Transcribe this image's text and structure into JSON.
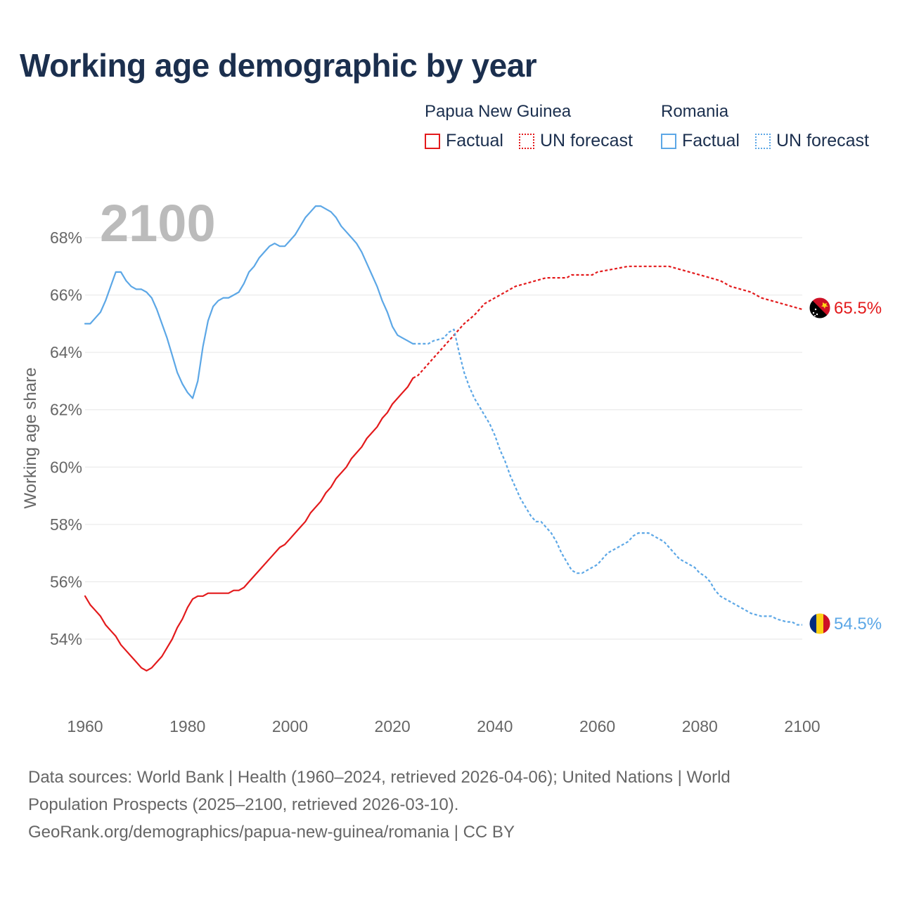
{
  "title": "Working age demographic by year",
  "legend": {
    "groups": [
      {
        "country": "Papua New Guinea",
        "factual": "Factual",
        "forecast": "UN forecast",
        "color": "#e31a1c"
      },
      {
        "country": "Romania",
        "factual": "Factual",
        "forecast": "UN forecast",
        "color": "#5ca7e6"
      }
    ]
  },
  "source": {
    "line1": "Data sources: World Bank | Health (1960–2024, retrieved 2026-04-06); United Nations | World",
    "line2": "Population Prospects (2025–2100, retrieved 2026-03-10).",
    "line3": "GeoRank.org/demographics/papua-new-guinea/romania | CC BY"
  },
  "icons": [
    "papua-new-guinea-flag-icon",
    "romania-flag-icon"
  ],
  "chart_data": {
    "type": "line",
    "title": "Working age demographic by year",
    "year_watermark": "2100",
    "xlabel": "",
    "ylabel": "Working age share",
    "xlim": [
      1960,
      2100
    ],
    "ylim": [
      52,
      69.5
    ],
    "x_ticks": [
      1960,
      1980,
      2000,
      2020,
      2040,
      2060,
      2080,
      2100
    ],
    "y_ticks": [
      54,
      56,
      58,
      60,
      62,
      64,
      66,
      68
    ],
    "y_tick_labels": [
      "54%",
      "56%",
      "58%",
      "60%",
      "62%",
      "64%",
      "66%",
      "68%"
    ],
    "grid": true,
    "factual_end_year": 2024,
    "series": [
      {
        "name": "Papua New Guinea",
        "color": "#e31a1c",
        "end_label": "65.5%",
        "points": [
          [
            1960,
            55.5
          ],
          [
            1961,
            55.2
          ],
          [
            1962,
            55.0
          ],
          [
            1963,
            54.8
          ],
          [
            1964,
            54.5
          ],
          [
            1965,
            54.3
          ],
          [
            1966,
            54.1
          ],
          [
            1967,
            53.8
          ],
          [
            1968,
            53.6
          ],
          [
            1969,
            53.4
          ],
          [
            1970,
            53.2
          ],
          [
            1971,
            53.0
          ],
          [
            1972,
            52.9
          ],
          [
            1973,
            53.0
          ],
          [
            1974,
            53.2
          ],
          [
            1975,
            53.4
          ],
          [
            1976,
            53.7
          ],
          [
            1977,
            54.0
          ],
          [
            1978,
            54.4
          ],
          [
            1979,
            54.7
          ],
          [
            1980,
            55.1
          ],
          [
            1981,
            55.4
          ],
          [
            1982,
            55.5
          ],
          [
            1983,
            55.5
          ],
          [
            1984,
            55.6
          ],
          [
            1986,
            55.6
          ],
          [
            1988,
            55.6
          ],
          [
            1989,
            55.7
          ],
          [
            1990,
            55.7
          ],
          [
            1991,
            55.8
          ],
          [
            1992,
            56.0
          ],
          [
            1994,
            56.4
          ],
          [
            1996,
            56.8
          ],
          [
            1998,
            57.2
          ],
          [
            1999,
            57.3
          ],
          [
            2000,
            57.5
          ],
          [
            2002,
            57.9
          ],
          [
            2003,
            58.1
          ],
          [
            2004,
            58.4
          ],
          [
            2006,
            58.8
          ],
          [
            2007,
            59.1
          ],
          [
            2008,
            59.3
          ],
          [
            2009,
            59.6
          ],
          [
            2011,
            60.0
          ],
          [
            2012,
            60.3
          ],
          [
            2014,
            60.7
          ],
          [
            2015,
            61.0
          ],
          [
            2017,
            61.4
          ],
          [
            2018,
            61.7
          ],
          [
            2019,
            61.9
          ],
          [
            2020,
            62.2
          ],
          [
            2022,
            62.6
          ],
          [
            2023,
            62.8
          ],
          [
            2024,
            63.1
          ],
          [
            2025,
            63.2
          ],
          [
            2026,
            63.4
          ],
          [
            2028,
            63.8
          ],
          [
            2030,
            64.2
          ],
          [
            2032,
            64.6
          ],
          [
            2034,
            65.0
          ],
          [
            2036,
            65.3
          ],
          [
            2038,
            65.7
          ],
          [
            2040,
            65.9
          ],
          [
            2042,
            66.1
          ],
          [
            2044,
            66.3
          ],
          [
            2046,
            66.4
          ],
          [
            2048,
            66.5
          ],
          [
            2050,
            66.6
          ],
          [
            2054,
            66.6
          ],
          [
            2055,
            66.7
          ],
          [
            2059,
            66.7
          ],
          [
            2060,
            66.8
          ],
          [
            2063,
            66.9
          ],
          [
            2066,
            67.0
          ],
          [
            2070,
            67.0
          ],
          [
            2074,
            67.0
          ],
          [
            2076,
            66.9
          ],
          [
            2078,
            66.8
          ],
          [
            2080,
            66.7
          ],
          [
            2082,
            66.6
          ],
          [
            2084,
            66.5
          ],
          [
            2086,
            66.3
          ],
          [
            2088,
            66.2
          ],
          [
            2090,
            66.1
          ],
          [
            2092,
            65.9
          ],
          [
            2094,
            65.8
          ],
          [
            2096,
            65.7
          ],
          [
            2098,
            65.6
          ],
          [
            2100,
            65.5
          ]
        ]
      },
      {
        "name": "Romania",
        "color": "#5ca7e6",
        "end_label": "54.5%",
        "points": [
          [
            1960,
            65.0
          ],
          [
            1961,
            65.0
          ],
          [
            1962,
            65.2
          ],
          [
            1963,
            65.4
          ],
          [
            1964,
            65.8
          ],
          [
            1965,
            66.3
          ],
          [
            1966,
            66.8
          ],
          [
            1967,
            66.8
          ],
          [
            1968,
            66.5
          ],
          [
            1969,
            66.3
          ],
          [
            1970,
            66.2
          ],
          [
            1971,
            66.2
          ],
          [
            1972,
            66.1
          ],
          [
            1973,
            65.9
          ],
          [
            1974,
            65.5
          ],
          [
            1975,
            65.0
          ],
          [
            1976,
            64.5
          ],
          [
            1977,
            63.9
          ],
          [
            1978,
            63.3
          ],
          [
            1979,
            62.9
          ],
          [
            1980,
            62.6
          ],
          [
            1981,
            62.4
          ],
          [
            1982,
            63.0
          ],
          [
            1983,
            64.2
          ],
          [
            1984,
            65.1
          ],
          [
            1985,
            65.6
          ],
          [
            1986,
            65.8
          ],
          [
            1987,
            65.9
          ],
          [
            1988,
            65.9
          ],
          [
            1989,
            66.0
          ],
          [
            1990,
            66.1
          ],
          [
            1991,
            66.4
          ],
          [
            1992,
            66.8
          ],
          [
            1993,
            67.0
          ],
          [
            1994,
            67.3
          ],
          [
            1995,
            67.5
          ],
          [
            1996,
            67.7
          ],
          [
            1997,
            67.8
          ],
          [
            1998,
            67.7
          ],
          [
            1999,
            67.7
          ],
          [
            2000,
            67.9
          ],
          [
            2001,
            68.1
          ],
          [
            2002,
            68.4
          ],
          [
            2003,
            68.7
          ],
          [
            2004,
            68.9
          ],
          [
            2005,
            69.1
          ],
          [
            2006,
            69.1
          ],
          [
            2007,
            69.0
          ],
          [
            2008,
            68.9
          ],
          [
            2009,
            68.7
          ],
          [
            2010,
            68.4
          ],
          [
            2011,
            68.2
          ],
          [
            2012,
            68.0
          ],
          [
            2013,
            67.8
          ],
          [
            2014,
            67.5
          ],
          [
            2015,
            67.1
          ],
          [
            2016,
            66.7
          ],
          [
            2017,
            66.3
          ],
          [
            2018,
            65.8
          ],
          [
            2019,
            65.4
          ],
          [
            2020,
            64.9
          ],
          [
            2021,
            64.6
          ],
          [
            2022,
            64.5
          ],
          [
            2023,
            64.4
          ],
          [
            2024,
            64.3
          ],
          [
            2025,
            64.3
          ],
          [
            2027,
            64.3
          ],
          [
            2028,
            64.4
          ],
          [
            2030,
            64.5
          ],
          [
            2031,
            64.7
          ],
          [
            2032,
            64.8
          ],
          [
            2033,
            64.0
          ],
          [
            2034,
            63.3
          ],
          [
            2035,
            62.8
          ],
          [
            2036,
            62.4
          ],
          [
            2037,
            62.1
          ],
          [
            2038,
            61.8
          ],
          [
            2039,
            61.5
          ],
          [
            2040,
            61.1
          ],
          [
            2041,
            60.6
          ],
          [
            2042,
            60.2
          ],
          [
            2043,
            59.7
          ],
          [
            2044,
            59.3
          ],
          [
            2045,
            58.9
          ],
          [
            2046,
            58.6
          ],
          [
            2047,
            58.3
          ],
          [
            2048,
            58.1
          ],
          [
            2049,
            58.1
          ],
          [
            2050,
            57.9
          ],
          [
            2051,
            57.7
          ],
          [
            2052,
            57.4
          ],
          [
            2053,
            57.0
          ],
          [
            2054,
            56.7
          ],
          [
            2055,
            56.4
          ],
          [
            2056,
            56.3
          ],
          [
            2057,
            56.3
          ],
          [
            2058,
            56.4
          ],
          [
            2059,
            56.5
          ],
          [
            2060,
            56.6
          ],
          [
            2061,
            56.8
          ],
          [
            2062,
            57.0
          ],
          [
            2063,
            57.1
          ],
          [
            2064,
            57.2
          ],
          [
            2065,
            57.3
          ],
          [
            2066,
            57.4
          ],
          [
            2067,
            57.6
          ],
          [
            2068,
            57.7
          ],
          [
            2070,
            57.7
          ],
          [
            2071,
            57.6
          ],
          [
            2072,
            57.5
          ],
          [
            2073,
            57.4
          ],
          [
            2074,
            57.2
          ],
          [
            2075,
            57.0
          ],
          [
            2076,
            56.8
          ],
          [
            2077,
            56.7
          ],
          [
            2078,
            56.6
          ],
          [
            2079,
            56.5
          ],
          [
            2080,
            56.3
          ],
          [
            2081,
            56.2
          ],
          [
            2082,
            56.0
          ],
          [
            2083,
            55.7
          ],
          [
            2084,
            55.5
          ],
          [
            2086,
            55.3
          ],
          [
            2088,
            55.1
          ],
          [
            2089,
            55.0
          ],
          [
            2090,
            54.9
          ],
          [
            2092,
            54.8
          ],
          [
            2094,
            54.8
          ],
          [
            2095,
            54.7
          ],
          [
            2097,
            54.6
          ],
          [
            2098,
            54.6
          ],
          [
            2099,
            54.5
          ],
          [
            2100,
            54.5
          ]
        ]
      }
    ]
  }
}
